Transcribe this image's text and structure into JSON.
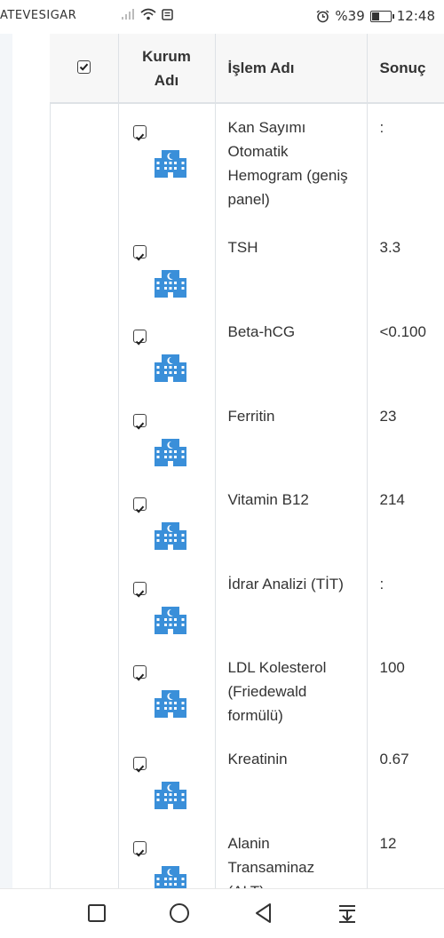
{
  "status_bar": {
    "carrier": "ATEVESIGAR",
    "battery_percent": "%39",
    "time": "12:48"
  },
  "table": {
    "columns": [
      "",
      "Kurum Adı",
      "İşlem Adı",
      "Sonuç"
    ],
    "header_checked": true,
    "rows": [
      {
        "checked": true,
        "institution_icon": "hospital-icon",
        "name": "Kan Sayımı Otomatik Hemogram (geniş panel)",
        "result": ":"
      },
      {
        "checked": true,
        "institution_icon": "hospital-icon",
        "name": "TSH",
        "result": "3.3"
      },
      {
        "checked": true,
        "institution_icon": "hospital-icon",
        "name": "Beta-hCG",
        "result": "<0.100"
      },
      {
        "checked": true,
        "institution_icon": "hospital-icon",
        "name": "Ferritin",
        "result": "23"
      },
      {
        "checked": true,
        "institution_icon": "hospital-icon",
        "name": "Vitamin B12",
        "result": "214"
      },
      {
        "checked": true,
        "institution_icon": "hospital-icon",
        "name": "İdrar Analizi (TİT)",
        "result": ":"
      },
      {
        "checked": true,
        "institution_icon": "hospital-icon",
        "name": "LDL Kolesterol (Friedewald formülü)",
        "result": "100"
      },
      {
        "checked": true,
        "institution_icon": "hospital-icon",
        "name": "Kreatinin",
        "result": "0.67"
      },
      {
        "checked": true,
        "institution_icon": "hospital-icon",
        "name": "Alanin Transaminaz (ALT)",
        "result": "12"
      }
    ]
  },
  "nav_bar": {
    "buttons": [
      "recents-icon",
      "home-icon",
      "back-icon",
      "notification-pull-icon"
    ]
  },
  "colors": {
    "hospital_icon": "#3a8fd9",
    "border": "#dee2e6",
    "header_bg": "#f7f7f7",
    "left_strip": "#f3f6f9"
  }
}
